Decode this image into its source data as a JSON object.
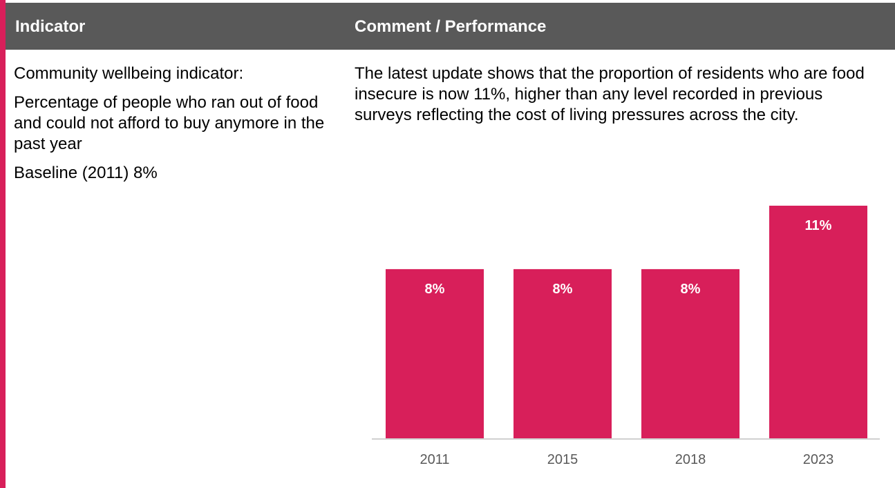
{
  "table": {
    "headers": {
      "indicator": "Indicator",
      "comment": "Comment / Performance"
    },
    "indicator": {
      "title": "Community wellbeing indicator:",
      "description": "Percentage of people who ran out of food and could not afford to buy anymore in the past year",
      "baseline": "Baseline (2011) 8%"
    },
    "comment": "The latest update shows that the proportion of residents who are food insecure is now 11%, higher than any level recorded in previous surveys reflecting the cost of living pressures across the city."
  },
  "chart_data": {
    "type": "bar",
    "categories": [
      "2011",
      "2015",
      "2018",
      "2023"
    ],
    "values": [
      8,
      8,
      8,
      11
    ],
    "value_labels": [
      "8%",
      "8%",
      "8%",
      "11%"
    ],
    "title": "",
    "xlabel": "",
    "ylabel": "",
    "ylim": [
      0,
      11
    ],
    "grid": false,
    "legend": "none",
    "bar_color": "#d81f5a"
  },
  "colors": {
    "accent": "#d81f5a",
    "header_bg": "#595959",
    "header_text": "#ffffff"
  }
}
